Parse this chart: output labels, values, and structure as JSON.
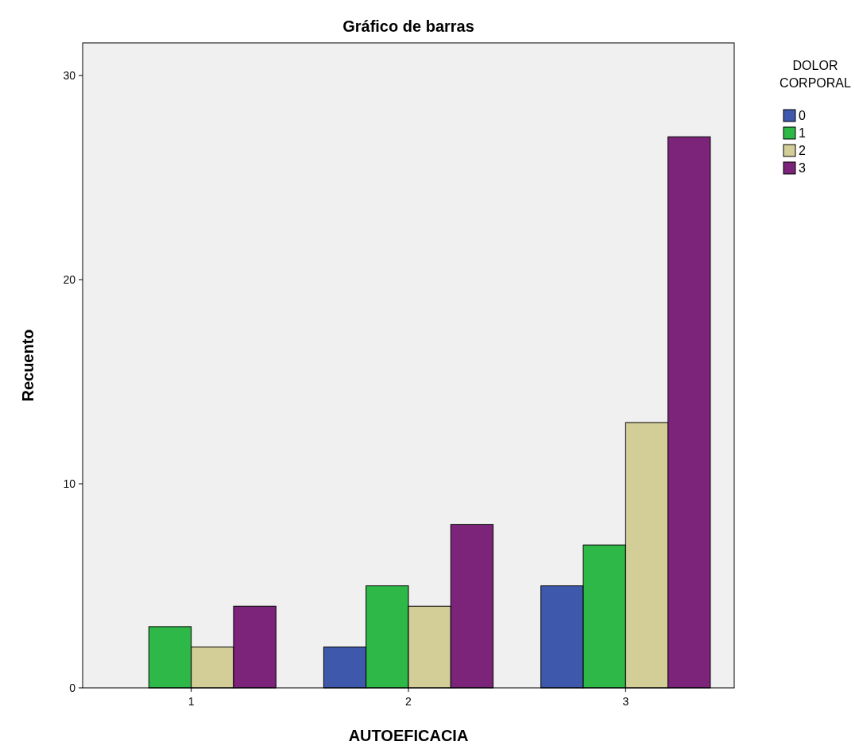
{
  "chart_data": {
    "type": "bar",
    "title": "Gráfico de barras",
    "xlabel": "AUTOEFICACIA",
    "ylabel": "Recuento",
    "legend_title": "DOLOR\nCORPORAL",
    "categories": [
      "1",
      "2",
      "3"
    ],
    "series": [
      {
        "name": "0",
        "color": "#3e58ac",
        "values": [
          0,
          2,
          5
        ]
      },
      {
        "name": "1",
        "color": "#2eb848",
        "values": [
          3,
          5,
          7
        ]
      },
      {
        "name": "2",
        "color": "#d3ce97",
        "values": [
          2,
          4,
          13
        ]
      },
      {
        "name": "3",
        "color": "#7b2479",
        "values": [
          4,
          8,
          27
        ]
      }
    ],
    "ylim": [
      0,
      31.6
    ],
    "yticks": [
      0,
      10,
      20,
      30
    ],
    "grid": false,
    "legend": "right"
  }
}
